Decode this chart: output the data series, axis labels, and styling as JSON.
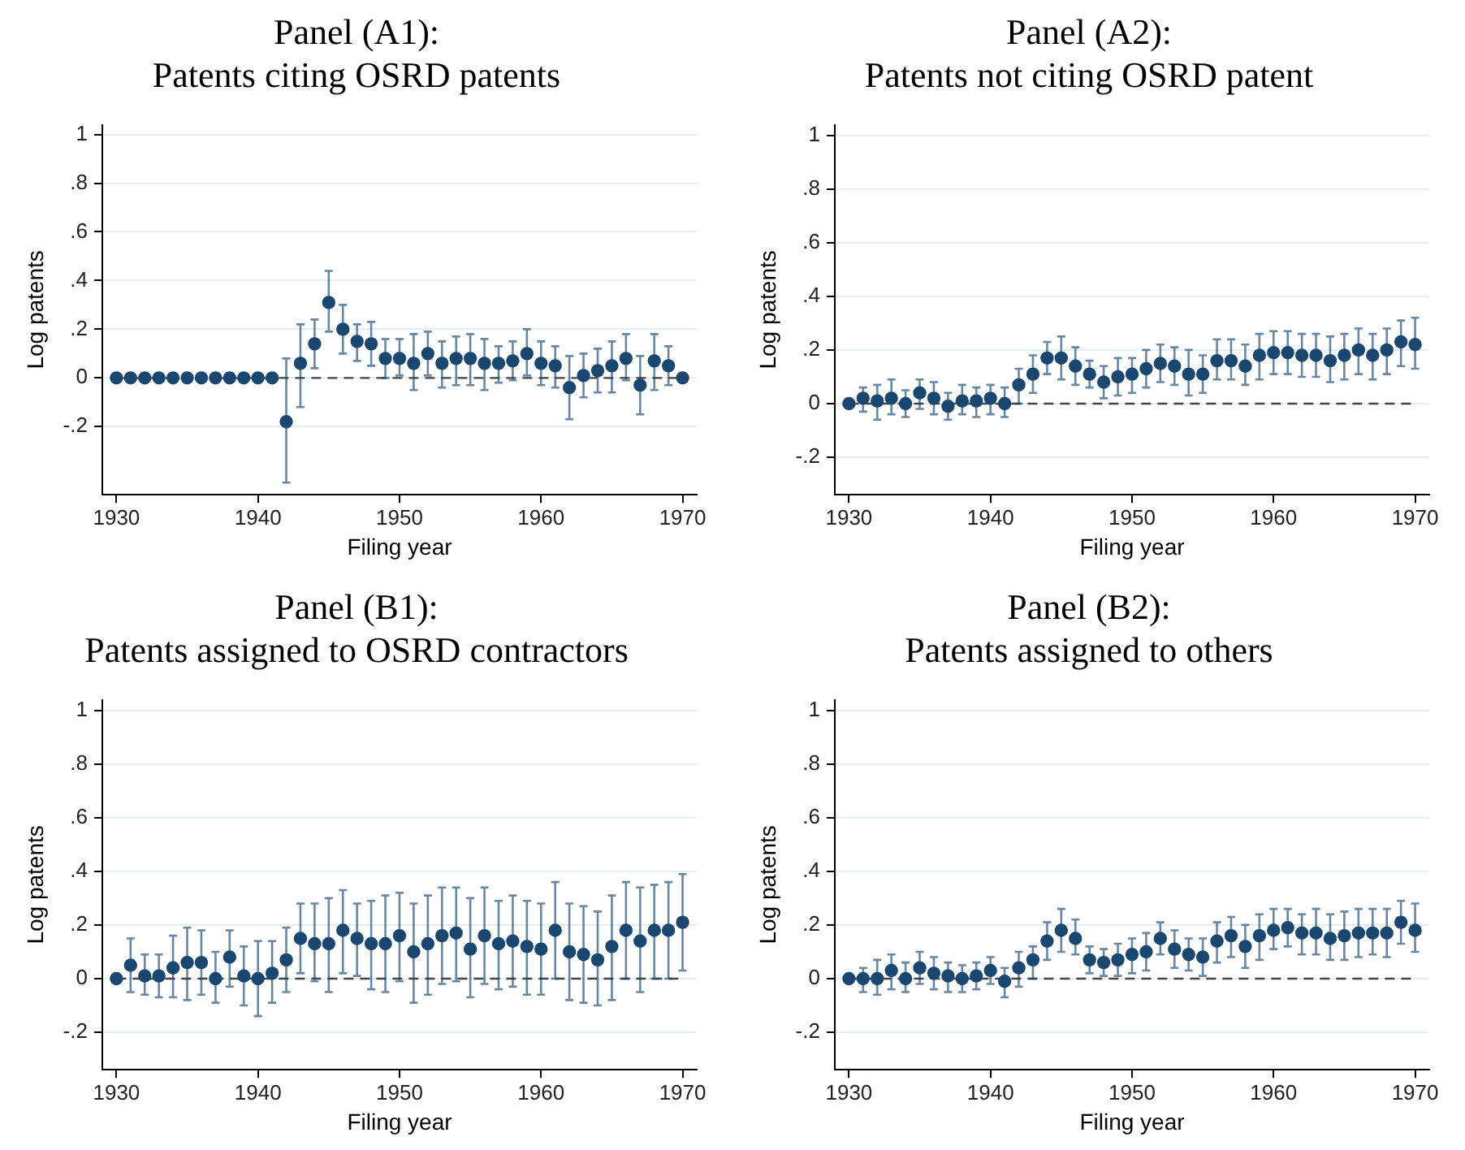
{
  "chart_data": [
    {
      "type": "scatter",
      "title": "Panel (A1):",
      "subtitle": "Patents citing OSRD patents",
      "xlabel": "Filing year",
      "ylabel": "Log patents",
      "marker": "circle",
      "grid": "y",
      "xlim": [
        1929,
        1971
      ],
      "xticks": [
        1930,
        1940,
        1950,
        1960,
        1970
      ],
      "ylim": [
        -0.48,
        1.04
      ],
      "yticks": [
        {
          "value": -0.2,
          "label": "-.2"
        },
        {
          "value": 0,
          "label": "0"
        },
        {
          "value": 0.2,
          "label": ".2"
        },
        {
          "value": 0.4,
          "label": ".4"
        },
        {
          "value": 0.6,
          "label": ".6"
        },
        {
          "value": 0.8,
          "label": ".8"
        },
        {
          "value": 1,
          "label": "1"
        }
      ],
      "ref_lines": [
        {
          "axis": "y",
          "value": 0,
          "line_style": "dashed",
          "color": "#444444"
        }
      ],
      "x": [
        1930,
        1931,
        1932,
        1933,
        1934,
        1935,
        1936,
        1937,
        1938,
        1939,
        1940,
        1941,
        1942,
        1943,
        1944,
        1945,
        1946,
        1947,
        1948,
        1949,
        1950,
        1951,
        1952,
        1953,
        1954,
        1955,
        1956,
        1957,
        1958,
        1959,
        1960,
        1961,
        1962,
        1963,
        1964,
        1965,
        1966,
        1967,
        1968,
        1969,
        1970
      ],
      "series": [
        {
          "color": "#1a476f",
          "values": [
            0,
            0,
            0,
            0,
            0,
            0,
            0,
            0,
            0,
            0,
            0,
            0,
            -0.18,
            0.06,
            0.14,
            0.31,
            0.2,
            0.15,
            0.14,
            0.08,
            0.08,
            0.06,
            0.1,
            0.06,
            0.08,
            0.08,
            0.06,
            0.06,
            0.07,
            0.1,
            0.06,
            0.05,
            -0.04,
            0.01,
            0.03,
            0.05,
            0.08,
            -0.03,
            0.07,
            0.05,
            0
          ],
          "errors": [
            null,
            null,
            null,
            null,
            null,
            null,
            null,
            null,
            null,
            null,
            null,
            null,
            [
              -0.43,
              0.08
            ],
            [
              -0.12,
              0.22
            ],
            [
              0.04,
              0.24
            ],
            [
              0.19,
              0.44
            ],
            [
              0.1,
              0.3
            ],
            [
              0.07,
              0.22
            ],
            [
              0.05,
              0.23
            ],
            [
              0,
              0.16
            ],
            [
              0.01,
              0.16
            ],
            [
              -0.05,
              0.18
            ],
            [
              0.01,
              0.19
            ],
            [
              -0.04,
              0.15
            ],
            [
              -0.03,
              0.17
            ],
            [
              -0.03,
              0.18
            ],
            [
              -0.05,
              0.16
            ],
            [
              -0.02,
              0.13
            ],
            [
              -0.01,
              0.15
            ],
            [
              0.01,
              0.2
            ],
            [
              -0.03,
              0.15
            ],
            [
              -0.04,
              0.13
            ],
            [
              -0.17,
              0.09
            ],
            [
              -0.08,
              0.1
            ],
            [
              -0.06,
              0.12
            ],
            [
              -0.06,
              0.15
            ],
            [
              -0.01,
              0.18
            ],
            [
              -0.15,
              0.09
            ],
            [
              -0.05,
              0.18
            ],
            [
              -0.03,
              0.13
            ],
            null
          ]
        }
      ]
    },
    {
      "type": "scatter",
      "title": "Panel (A2):",
      "subtitle": "Patents not citing OSRD patent",
      "xlabel": "Filing year",
      "ylabel": "Log patents",
      "marker": "circle",
      "grid": "y",
      "xlim": [
        1929,
        1971
      ],
      "xticks": [
        1930,
        1940,
        1950,
        1960,
        1970
      ],
      "ylim": [
        -0.34,
        1.04
      ],
      "yticks": [
        {
          "value": -0.2,
          "label": "-.2"
        },
        {
          "value": 0,
          "label": "0"
        },
        {
          "value": 0.2,
          "label": ".2"
        },
        {
          "value": 0.4,
          "label": ".4"
        },
        {
          "value": 0.6,
          "label": ".6"
        },
        {
          "value": 0.8,
          "label": ".8"
        },
        {
          "value": 1,
          "label": "1"
        }
      ],
      "ref_lines": [
        {
          "axis": "y",
          "value": 0,
          "line_style": "dashed",
          "color": "#444444"
        }
      ],
      "x": [
        1930,
        1931,
        1932,
        1933,
        1934,
        1935,
        1936,
        1937,
        1938,
        1939,
        1940,
        1941,
        1942,
        1943,
        1944,
        1945,
        1946,
        1947,
        1948,
        1949,
        1950,
        1951,
        1952,
        1953,
        1954,
        1955,
        1956,
        1957,
        1958,
        1959,
        1960,
        1961,
        1962,
        1963,
        1964,
        1965,
        1966,
        1967,
        1968,
        1969,
        1970
      ],
      "series": [
        {
          "color": "#1a476f",
          "values": [
            0,
            0.02,
            0.01,
            0.02,
            0,
            0.04,
            0.02,
            -0.01,
            0.01,
            0.01,
            0.02,
            0,
            0.07,
            0.11,
            0.17,
            0.17,
            0.14,
            0.11,
            0.08,
            0.1,
            0.11,
            0.13,
            0.15,
            0.14,
            0.11,
            0.11,
            0.16,
            0.16,
            0.14,
            0.18,
            0.19,
            0.19,
            0.18,
            0.18,
            0.16,
            0.18,
            0.2,
            0.18,
            0.2,
            0.23,
            0.22
          ],
          "errors": [
            null,
            [
              -0.03,
              0.06
            ],
            [
              -0.06,
              0.07
            ],
            [
              -0.04,
              0.09
            ],
            [
              -0.05,
              0.05
            ],
            [
              -0.02,
              0.09
            ],
            [
              -0.04,
              0.08
            ],
            [
              -0.06,
              0.04
            ],
            [
              -0.04,
              0.07
            ],
            [
              -0.05,
              0.06
            ],
            [
              -0.04,
              0.07
            ],
            [
              -0.05,
              0.06
            ],
            [
              0,
              0.13
            ],
            [
              0.04,
              0.18
            ],
            [
              0.11,
              0.23
            ],
            [
              0.09,
              0.25
            ],
            [
              0.07,
              0.21
            ],
            [
              0.06,
              0.16
            ],
            [
              0.02,
              0.14
            ],
            [
              0.03,
              0.17
            ],
            [
              0.04,
              0.17
            ],
            [
              0.06,
              0.2
            ],
            [
              0.08,
              0.22
            ],
            [
              0.07,
              0.21
            ],
            [
              0.03,
              0.2
            ],
            [
              0.04,
              0.18
            ],
            [
              0.09,
              0.24
            ],
            [
              0.09,
              0.24
            ],
            [
              0.07,
              0.22
            ],
            [
              0.09,
              0.26
            ],
            [
              0.11,
              0.27
            ],
            [
              0.11,
              0.27
            ],
            [
              0.1,
              0.26
            ],
            [
              0.1,
              0.26
            ],
            [
              0.08,
              0.25
            ],
            [
              0.09,
              0.26
            ],
            [
              0.11,
              0.28
            ],
            [
              0.09,
              0.26
            ],
            [
              0.11,
              0.28
            ],
            [
              0.14,
              0.31
            ],
            [
              0.13,
              0.32
            ]
          ]
        }
      ]
    },
    {
      "type": "scatter",
      "title": "Panel (B1):",
      "subtitle": "Patents assigned to OSRD contractors",
      "xlabel": "Filing year",
      "ylabel": "Log patents",
      "marker": "circle",
      "grid": "y",
      "xlim": [
        1929,
        1971
      ],
      "xticks": [
        1930,
        1940,
        1950,
        1960,
        1970
      ],
      "ylim": [
        -0.34,
        1.04
      ],
      "yticks": [
        {
          "value": -0.2,
          "label": "-.2"
        },
        {
          "value": 0,
          "label": "0"
        },
        {
          "value": 0.2,
          "label": ".2"
        },
        {
          "value": 0.4,
          "label": ".4"
        },
        {
          "value": 0.6,
          "label": ".6"
        },
        {
          "value": 0.8,
          "label": ".8"
        },
        {
          "value": 1,
          "label": "1"
        }
      ],
      "ref_lines": [
        {
          "axis": "y",
          "value": 0,
          "line_style": "dashed",
          "color": "#444444"
        }
      ],
      "x": [
        1930,
        1931,
        1932,
        1933,
        1934,
        1935,
        1936,
        1937,
        1938,
        1939,
        1940,
        1941,
        1942,
        1943,
        1944,
        1945,
        1946,
        1947,
        1948,
        1949,
        1950,
        1951,
        1952,
        1953,
        1954,
        1955,
        1956,
        1957,
        1958,
        1959,
        1960,
        1961,
        1962,
        1963,
        1964,
        1965,
        1966,
        1967,
        1968,
        1969,
        1970
      ],
      "series": [
        {
          "color": "#1a476f",
          "values": [
            0,
            0.05,
            0.01,
            0.01,
            0.04,
            0.06,
            0.06,
            0,
            0.08,
            0.01,
            0,
            0.02,
            0.07,
            0.15,
            0.13,
            0.13,
            0.18,
            0.15,
            0.13,
            0.13,
            0.16,
            0.1,
            0.13,
            0.16,
            0.17,
            0.11,
            0.16,
            0.13,
            0.14,
            0.12,
            0.11,
            0.18,
            0.1,
            0.09,
            0.07,
            0.12,
            0.18,
            0.14,
            0.18,
            0.18,
            0.21
          ],
          "errors": [
            null,
            [
              -0.05,
              0.15
            ],
            [
              -0.06,
              0.09
            ],
            [
              -0.07,
              0.09
            ],
            [
              -0.07,
              0.16
            ],
            [
              -0.08,
              0.19
            ],
            [
              -0.06,
              0.18
            ],
            [
              -0.09,
              0.1
            ],
            [
              -0.03,
              0.18
            ],
            [
              -0.1,
              0.12
            ],
            [
              -0.14,
              0.14
            ],
            [
              -0.09,
              0.14
            ],
            [
              -0.05,
              0.19
            ],
            [
              0.02,
              0.28
            ],
            [
              -0.01,
              0.28
            ],
            [
              -0.05,
              0.3
            ],
            [
              0.02,
              0.33
            ],
            [
              0.01,
              0.28
            ],
            [
              -0.04,
              0.29
            ],
            [
              -0.05,
              0.31
            ],
            [
              -0.01,
              0.32
            ],
            [
              -0.09,
              0.28
            ],
            [
              -0.06,
              0.31
            ],
            [
              -0.02,
              0.34
            ],
            [
              -0.01,
              0.34
            ],
            [
              -0.07,
              0.3
            ],
            [
              -0.02,
              0.34
            ],
            [
              -0.04,
              0.29
            ],
            [
              -0.03,
              0.31
            ],
            [
              -0.06,
              0.29
            ],
            [
              -0.06,
              0.28
            ],
            [
              0,
              0.36
            ],
            [
              -0.08,
              0.28
            ],
            [
              -0.09,
              0.27
            ],
            [
              -0.1,
              0.25
            ],
            [
              -0.08,
              0.31
            ],
            [
              0,
              0.36
            ],
            [
              -0.05,
              0.34
            ],
            [
              0,
              0.35
            ],
            [
              0,
              0.36
            ],
            [
              0.03,
              0.39
            ]
          ]
        }
      ]
    },
    {
      "type": "scatter",
      "title": "Panel (B2):",
      "subtitle": "Patents assigned to others",
      "xlabel": "Filing year",
      "ylabel": "Log patents",
      "marker": "circle",
      "grid": "y",
      "xlim": [
        1929,
        1971
      ],
      "xticks": [
        1930,
        1940,
        1950,
        1960,
        1970
      ],
      "ylim": [
        -0.34,
        1.04
      ],
      "yticks": [
        {
          "value": -0.2,
          "label": "-.2"
        },
        {
          "value": 0,
          "label": "0"
        },
        {
          "value": 0.2,
          "label": ".2"
        },
        {
          "value": 0.4,
          "label": ".4"
        },
        {
          "value": 0.6,
          "label": ".6"
        },
        {
          "value": 0.8,
          "label": ".8"
        },
        {
          "value": 1,
          "label": "1"
        }
      ],
      "ref_lines": [
        {
          "axis": "y",
          "value": 0,
          "line_style": "dashed",
          "color": "#444444"
        }
      ],
      "x": [
        1930,
        1931,
        1932,
        1933,
        1934,
        1935,
        1936,
        1937,
        1938,
        1939,
        1940,
        1941,
        1942,
        1943,
        1944,
        1945,
        1946,
        1947,
        1948,
        1949,
        1950,
        1951,
        1952,
        1953,
        1954,
        1955,
        1956,
        1957,
        1958,
        1959,
        1960,
        1961,
        1962,
        1963,
        1964,
        1965,
        1966,
        1967,
        1968,
        1969,
        1970
      ],
      "series": [
        {
          "color": "#1a476f",
          "values": [
            0,
            0,
            0,
            0.03,
            0,
            0.04,
            0.02,
            0.01,
            0,
            0.01,
            0.03,
            -0.01,
            0.04,
            0.07,
            0.14,
            0.18,
            0.15,
            0.07,
            0.06,
            0.07,
            0.09,
            0.1,
            0.15,
            0.11,
            0.09,
            0.08,
            0.14,
            0.16,
            0.12,
            0.16,
            0.18,
            0.19,
            0.17,
            0.17,
            0.15,
            0.16,
            0.17,
            0.17,
            0.17,
            0.21,
            0.18
          ],
          "errors": [
            null,
            [
              -0.05,
              0.04
            ],
            [
              -0.06,
              0.07
            ],
            [
              -0.04,
              0.09
            ],
            [
              -0.05,
              0.06
            ],
            [
              -0.02,
              0.1
            ],
            [
              -0.04,
              0.08
            ],
            [
              -0.05,
              0.06
            ],
            [
              -0.05,
              0.05
            ],
            [
              -0.04,
              0.06
            ],
            [
              -0.02,
              0.08
            ],
            [
              -0.07,
              0.04
            ],
            [
              -0.03,
              0.1
            ],
            [
              0,
              0.12
            ],
            [
              0.07,
              0.21
            ],
            [
              0.1,
              0.26
            ],
            [
              0.09,
              0.22
            ],
            [
              0.02,
              0.12
            ],
            [
              0.01,
              0.11
            ],
            [
              0.01,
              0.13
            ],
            [
              0.02,
              0.15
            ],
            [
              0.03,
              0.17
            ],
            [
              0.09,
              0.21
            ],
            [
              0.04,
              0.18
            ],
            [
              0.03,
              0.15
            ],
            [
              0.01,
              0.15
            ],
            [
              0.06,
              0.21
            ],
            [
              0.08,
              0.23
            ],
            [
              0.04,
              0.2
            ],
            [
              0.07,
              0.24
            ],
            [
              0.11,
              0.26
            ],
            [
              0.12,
              0.26
            ],
            [
              0.09,
              0.24
            ],
            [
              0.09,
              0.26
            ],
            [
              0.07,
              0.24
            ],
            [
              0.07,
              0.25
            ],
            [
              0.08,
              0.26
            ],
            [
              0.09,
              0.26
            ],
            [
              0.08,
              0.26
            ],
            [
              0.13,
              0.29
            ],
            [
              0.1,
              0.28
            ]
          ]
        }
      ]
    }
  ]
}
